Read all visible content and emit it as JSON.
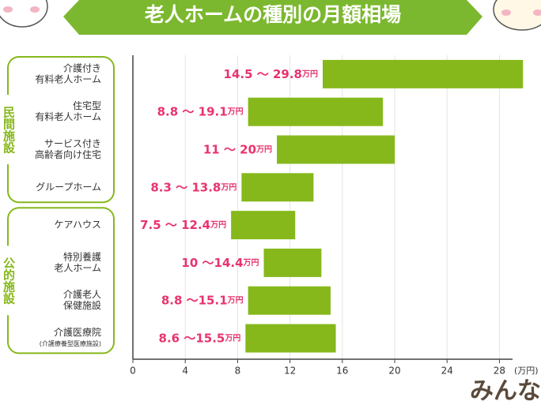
{
  "chart_data": {
    "type": "range-bar",
    "title": "老人ホームの種別の月額相場",
    "x_unit_label": "(万円)",
    "unit": "万円",
    "logo": "みんなの介護",
    "color": "#86b81b",
    "label_color": "#e8336d",
    "xlim": [
      0,
      29
    ],
    "xticks": [
      0,
      4,
      8,
      12,
      16,
      20,
      24,
      28
    ],
    "grid": true,
    "groups": [
      {
        "label": "民間施設",
        "categories": [
          [
            "介護付き",
            "有料老人ホーム"
          ],
          [
            "住宅型",
            "有料老人ホーム"
          ],
          [
            "サービス付き",
            "高齢者向け住宅"
          ],
          [
            "グループホーム"
          ]
        ],
        "low": [
          14.5,
          8.8,
          11,
          8.3
        ],
        "high": [
          29.8,
          19.1,
          20,
          13.8
        ],
        "value_labels": [
          "14.5 ～ 29.8",
          "8.8 ～ 19.1",
          "11 ～ 20",
          "8.3 ～ 13.8"
        ]
      },
      {
        "label": "公的施設",
        "categories": [
          [
            "ケアハウス"
          ],
          [
            "特別養護",
            "老人ホーム"
          ],
          [
            "介護老人",
            "保健施設"
          ],
          [
            "介護医療院",
            "(介護療養型医療施設)"
          ]
        ],
        "low": [
          7.5,
          10,
          8.8,
          8.6
        ],
        "high": [
          12.4,
          14.4,
          15.1,
          15.5
        ],
        "value_labels": [
          "7.5 ～ 12.4",
          "10 ～14.4",
          "8.8 ～15.1",
          "8.6 ～15.5"
        ]
      }
    ]
  }
}
